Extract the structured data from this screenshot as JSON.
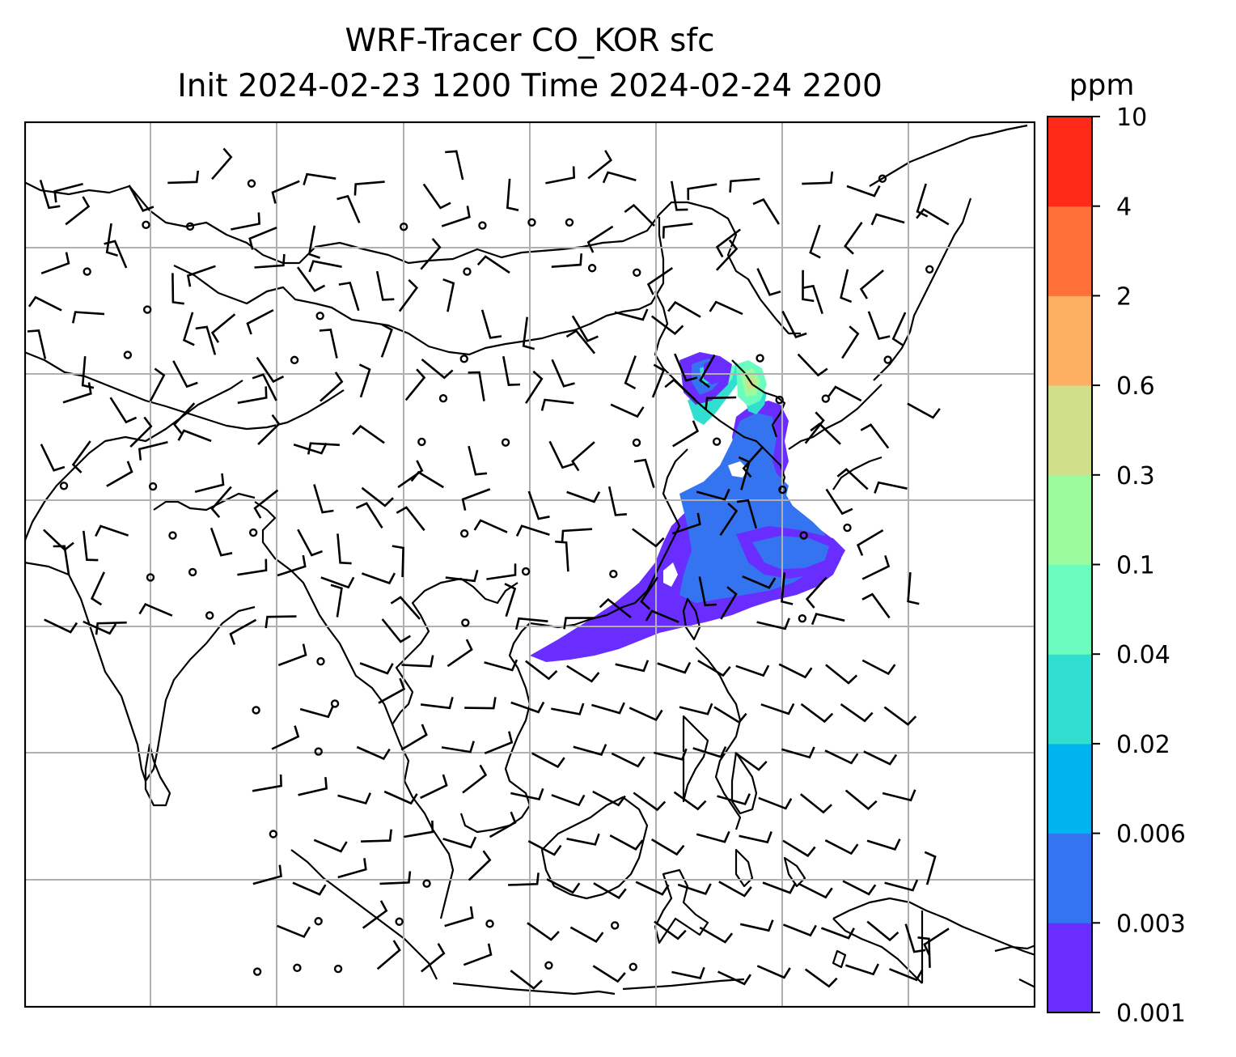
{
  "title": {
    "line1": "WRF-Tracer CO_KOR sfc",
    "line2": "Init 2024-02-23 1200 Time 2024-02-24 2200"
  },
  "colorbar": {
    "unit": "ppm",
    "levels": [
      "0.001",
      "0.003",
      "0.006",
      "0.02",
      "0.04",
      "0.1",
      "0.3",
      "0.6",
      "2",
      "4",
      "10"
    ],
    "colors": [
      "#6a2dff",
      "#3474f0",
      "#00b4f0",
      "#31dfd0",
      "#6bfcbf",
      "#9cfb9c",
      "#d0e08a",
      "#fdb061",
      "#ff7139",
      "#ff2a17"
    ]
  },
  "map": {
    "gridlines": true,
    "coastline_color": "#000000",
    "gridline_color": "#b0b0b0",
    "plume_colors": [
      "#6a2dff",
      "#3474f0",
      "#31dfd0",
      "#6bfcbf",
      "#9cfb9c",
      "#d0e08a"
    ]
  }
}
